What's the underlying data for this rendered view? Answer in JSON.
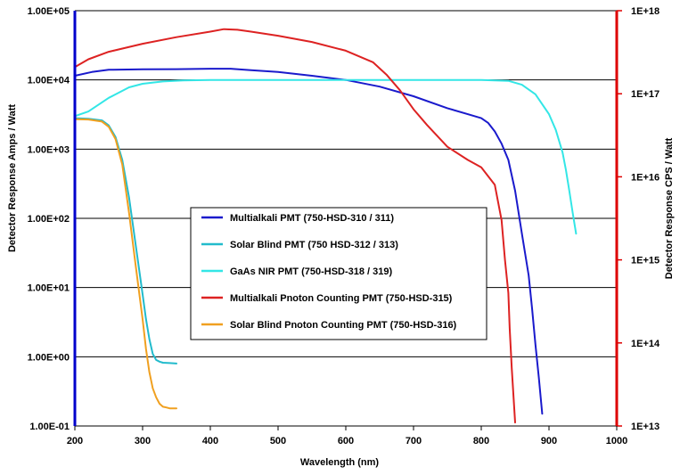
{
  "chart_data": {
    "type": "line",
    "title": "",
    "xlabel": "Wavelength (nm)",
    "ylabel_left": "Detector Response Amps / Watt",
    "ylabel_right": "Detector Response CPS / Watt",
    "xlim": [
      200,
      1000
    ],
    "ylim_left": [
      0.1,
      100000
    ],
    "ylim_right": [
      10000000000000.0,
      1e+18
    ],
    "yscale": "log",
    "grid": "horizontal",
    "legend_position": "center",
    "x_ticks": [
      "200",
      "300",
      "400",
      "500",
      "600",
      "700",
      "800",
      "900",
      "1000"
    ],
    "y_left_ticks": [
      "1.00E+05",
      "1.00E+04",
      "1.00E+03",
      "1.00E+02",
      "1.00E+01",
      "1.00E+00",
      "1.00E-01"
    ],
    "y_right_ticks": [
      "1E+18",
      "1E+17",
      "1E+16",
      "1E+15",
      "1E+14",
      "1E+13"
    ],
    "left_axis_color": "#0000cc",
    "right_axis_color": "#dd0000",
    "series": [
      {
        "name": "Multialkali PMT (750-HSD-310 / 311)",
        "color": "#1a1acc",
        "axis": "left",
        "x": [
          200,
          225,
          250,
          300,
          350,
          400,
          430,
          460,
          500,
          550,
          600,
          650,
          700,
          750,
          790,
          800,
          810,
          820,
          830,
          840,
          850,
          860,
          870,
          875,
          880,
          885,
          890
        ],
        "y": [
          11500,
          13000,
          14000,
          14200,
          14300,
          14500,
          14500,
          13800,
          13000,
          11500,
          10000,
          8000,
          5800,
          3900,
          3000,
          2800,
          2400,
          1800,
          1200,
          700,
          250,
          60,
          15,
          5,
          1.5,
          0.5,
          0.15
        ]
      },
      {
        "name": "Solar Blind PMT (750 HSD-312 / 313)",
        "color": "#22bbcc",
        "axis": "left",
        "x": [
          200,
          220,
          240,
          250,
          260,
          270,
          280,
          290,
          300,
          305,
          310,
          315,
          320,
          325,
          330,
          340,
          350
        ],
        "y": [
          2800,
          2750,
          2600,
          2200,
          1500,
          700,
          200,
          40,
          8,
          3.5,
          1.8,
          1.1,
          0.9,
          0.85,
          0.82,
          0.81,
          0.8
        ]
      },
      {
        "name": "GaAs NIR PMT (750-HSD-318 / 319)",
        "color": "#33e6e6",
        "axis": "left",
        "x": [
          200,
          220,
          250,
          280,
          300,
          330,
          360,
          400,
          450,
          500,
          600,
          700,
          800,
          840,
          860,
          880,
          900,
          910,
          920,
          925,
          930,
          935,
          940
        ],
        "y": [
          3000,
          3500,
          5500,
          7800,
          8800,
          9500,
          9800,
          10000,
          10000,
          10000,
          10000,
          10000,
          10000,
          9700,
          8500,
          6200,
          3200,
          1900,
          900,
          500,
          250,
          120,
          60
        ]
      },
      {
        "name": "Multialkali Pnoton Counting PMT (750-HSD-315)",
        "color": "#dd2222",
        "axis": "right",
        "x": [
          200,
          220,
          250,
          300,
          350,
          400,
          420,
          440,
          460,
          500,
          550,
          600,
          640,
          660,
          680,
          700,
          720,
          750,
          780,
          800,
          820,
          830,
          835,
          840,
          842,
          845,
          850
        ],
        "y": [
          2.1e+17,
          2.6e+17,
          3.2e+17,
          4e+17,
          4.8e+17,
          5.6e+17,
          6e+17,
          5.9e+17,
          5.6e+17,
          5e+17,
          4.2e+17,
          3.3e+17,
          2.4e+17,
          1.7e+17,
          1.1e+17,
          6.5e+16,
          4.2e+16,
          2.3e+16,
          1.6e+16,
          1.3e+16,
          8000000000000000.0,
          3000000000000000.0,
          1000000000000000.0,
          400000000000000.0,
          150000000000000.0,
          50000000000000.0,
          11000000000000.0
        ]
      },
      {
        "name": "Solar Blind Pnoton Counting PMT (750-HSD-316)",
        "color": "#f0a020",
        "axis": "left",
        "x": [
          200,
          220,
          240,
          250,
          260,
          270,
          280,
          290,
          300,
          305,
          310,
          315,
          320,
          325,
          330,
          335,
          340,
          350
        ],
        "y": [
          2700,
          2680,
          2500,
          2100,
          1400,
          600,
          120,
          20,
          3.5,
          1.3,
          0.6,
          0.35,
          0.26,
          0.21,
          0.19,
          0.185,
          0.18,
          0.18
        ]
      }
    ]
  }
}
